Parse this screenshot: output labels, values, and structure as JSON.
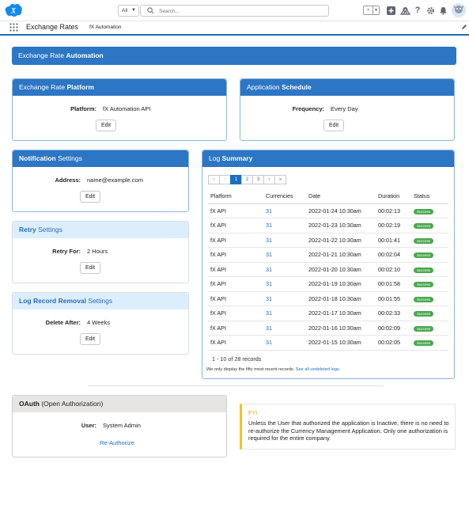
{
  "topbar": {
    "search_scope": "All",
    "search_placeholder": "Search..."
  },
  "appnav": {
    "app_name": "Exchange Rates",
    "tab": "fX Automation"
  },
  "banner": {
    "prefix": "Exchange Rate",
    "bold": "Automation"
  },
  "platform_card": {
    "title_prefix": "Exchange Rate",
    "title_bold": "Platform",
    "label": "Platform:",
    "value": "fX Automation API",
    "edit": "Edit"
  },
  "schedule_card": {
    "title_prefix": "Application",
    "title_bold": "Schedule",
    "label": "Frequency:",
    "value": "Every Day",
    "edit": "Edit"
  },
  "notification_card": {
    "title_bold": "Notification",
    "title_suffix": "Settings",
    "label": "Address:",
    "value": "name@example.com",
    "edit": "Edit"
  },
  "retry_card": {
    "title_bold": "Retry",
    "title_suffix": "Settings",
    "label": "Retry For:",
    "value": "2 Hours",
    "edit": "Edit"
  },
  "removal_card": {
    "title_bold": "Log Record Removal",
    "title_suffix": "Settings",
    "label": "Delete After:",
    "value": "4 Weeks",
    "edit": "Edit"
  },
  "log_summary": {
    "title_prefix": "Log",
    "title_bold": "Summary",
    "pager": {
      "first": "«",
      "prev": "‹",
      "pages": [
        "1",
        "2",
        "3"
      ],
      "next": "›",
      "last": "»"
    },
    "columns": [
      "Platform",
      "Currencies",
      "Date",
      "Duration",
      "Status"
    ],
    "rows": [
      {
        "platform": "fX API",
        "currencies": "31",
        "date": "2022-01-24 10:30am",
        "duration": "00:02:13",
        "status": "Success"
      },
      {
        "platform": "fX API",
        "currencies": "31",
        "date": "2022-01-23 10:30am",
        "duration": "00:02:19",
        "status": "Success"
      },
      {
        "platform": "fX API",
        "currencies": "31",
        "date": "2022-01-22 10:30am",
        "duration": "00:01:41",
        "status": "Success"
      },
      {
        "platform": "fX API",
        "currencies": "31",
        "date": "2022-01-21 10:30am",
        "duration": "00:02:04",
        "status": "Success"
      },
      {
        "platform": "fX API",
        "currencies": "31",
        "date": "2022-01-20 10:30am",
        "duration": "00:02:10",
        "status": "Success"
      },
      {
        "platform": "fX API",
        "currencies": "31",
        "date": "2022-01-19 10:30am",
        "duration": "00:01:58",
        "status": "Success"
      },
      {
        "platform": "fX API",
        "currencies": "31",
        "date": "2022-01-18 10:30am",
        "duration": "00:01:55",
        "status": "Success"
      },
      {
        "platform": "fX API",
        "currencies": "31",
        "date": "2022-01-17 10:30am",
        "duration": "00:02:33",
        "status": "Success"
      },
      {
        "platform": "fX API",
        "currencies": "31",
        "date": "2022-01-16 10:30am",
        "duration": "00:02:09",
        "status": "Success"
      },
      {
        "platform": "fX API",
        "currencies": "31",
        "date": "2022-01-15 10:30am",
        "duration": "00:02:05",
        "status": "Success"
      }
    ],
    "records": "1 - 10 of 28 records",
    "note": "We only display the fifty most recent records.",
    "note_link": "See all undeleted logs."
  },
  "oauth_card": {
    "title_bold": "OAuth",
    "title_suffix": "(Open Authorization)",
    "label": "User:",
    "value": "System Admin",
    "reauth": "Re-Authorize"
  },
  "fyi": {
    "title": "FYI",
    "body": "Unless the User that authorized the application is Inactive, there is no need to re-authorize the Currency Management Application. Only one authorization is required for the entire company."
  },
  "colors": {
    "brand": "#2c76c4",
    "link": "#1a6fbf",
    "success": "#4aa84f",
    "fyi_accent": "#f5c518"
  }
}
